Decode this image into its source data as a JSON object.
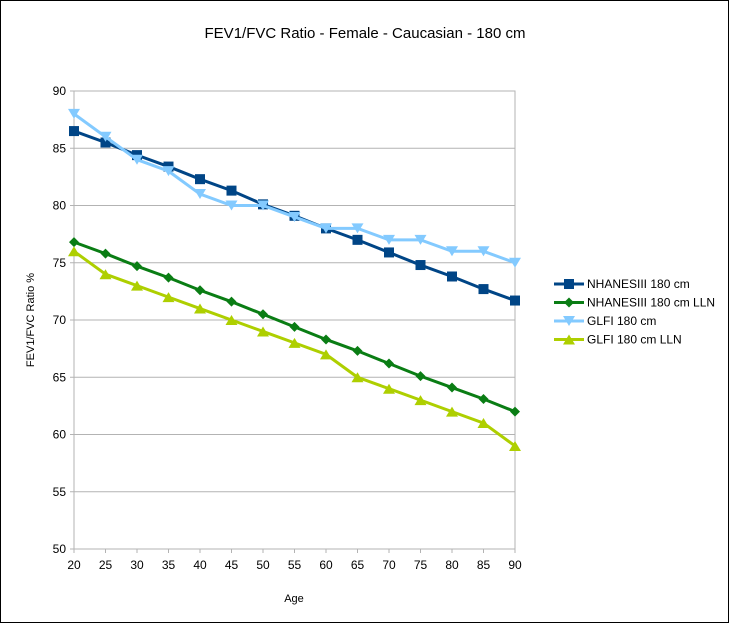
{
  "chart_data": {
    "type": "line",
    "title": "FEV1/FVC Ratio - Female - Caucasian - 180 cm",
    "xlabel": "Age",
    "ylabel": "FEV1/FVC Ratio %",
    "x": [
      20,
      25,
      30,
      35,
      40,
      45,
      50,
      55,
      60,
      65,
      70,
      75,
      80,
      85,
      90
    ],
    "xlim": [
      20,
      90
    ],
    "ylim": [
      50,
      90
    ],
    "yticks": [
      50,
      55,
      60,
      65,
      70,
      75,
      80,
      85,
      90
    ],
    "grid": true,
    "legend_position": "right",
    "series": [
      {
        "name": "NHANESIII 180 cm",
        "color": "#004586",
        "marker": "square",
        "values": [
          86.5,
          85.5,
          84.4,
          83.4,
          82.3,
          81.3,
          80.1,
          79.1,
          78.0,
          77.0,
          75.9,
          74.8,
          73.8,
          72.7,
          71.7
        ]
      },
      {
        "name": "NHANESIII 180 cm LLN",
        "color": "#0a7d14",
        "marker": "diamond",
        "values": [
          76.8,
          75.8,
          74.7,
          73.7,
          72.6,
          71.6,
          70.5,
          69.4,
          68.3,
          67.3,
          66.2,
          65.1,
          64.1,
          63.1,
          62.0
        ]
      },
      {
        "name": "GLFI 180 cm",
        "color": "#83caff",
        "marker": "triangle-down",
        "values": [
          88,
          86,
          84,
          83,
          81,
          80,
          80,
          79,
          78,
          78,
          77,
          77,
          76,
          76,
          75
        ]
      },
      {
        "name": "GLFI 180 cm LLN",
        "color": "#aecf00",
        "marker": "triangle-up",
        "values": [
          76,
          74,
          73,
          72,
          71,
          70,
          69,
          68,
          67,
          65,
          64,
          63,
          62,
          61,
          59
        ]
      }
    ]
  }
}
